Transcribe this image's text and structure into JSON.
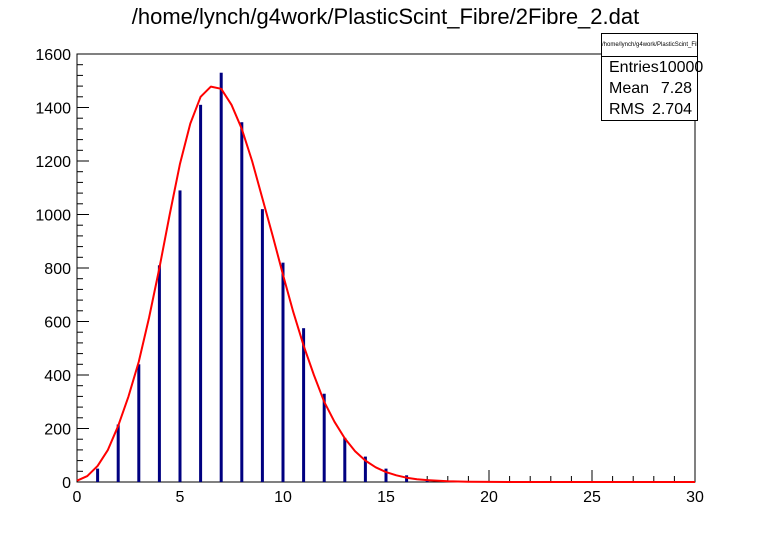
{
  "title": "/home/lynch/g4work/PlasticScint_Fibre/2Fibre_2.dat",
  "stats": {
    "header": "/home/lynch/g4work/PlasticScint_Fibre/2Fibre_2.dat",
    "rows": [
      {
        "label": "Entries",
        "value": "10000"
      },
      {
        "label": "Mean",
        "value": "7.28"
      },
      {
        "label": "RMS",
        "value": "2.704"
      }
    ]
  },
  "chart_data": {
    "type": "bar",
    "title": "/home/lynch/g4work/PlasticScint_Fibre/2Fibre_2.dat",
    "xlabel": "",
    "ylabel": "",
    "xlim": [
      0,
      30
    ],
    "ylim": [
      0,
      1600
    ],
    "xticks": [
      0,
      5,
      10,
      15,
      20,
      25,
      30
    ],
    "yticks": [
      0,
      200,
      400,
      600,
      800,
      1000,
      1200,
      1400,
      1600
    ],
    "histogram": {
      "color": "#000080",
      "x": [
        1,
        2,
        3,
        4,
        5,
        6,
        7,
        8,
        9,
        10,
        11,
        12,
        13,
        14,
        15,
        16,
        17,
        18,
        19,
        20,
        21,
        22,
        23,
        24,
        25,
        26,
        27,
        28,
        29
      ],
      "values": [
        50,
        215,
        440,
        810,
        1090,
        1410,
        1530,
        1345,
        1020,
        820,
        575,
        330,
        165,
        95,
        50,
        25,
        10,
        5,
        3,
        2,
        1,
        1,
        0,
        0,
        0,
        0,
        0,
        0,
        0
      ]
    },
    "fit": {
      "color": "#ff0000",
      "x": [
        0,
        0.5,
        1,
        1.5,
        2,
        2.5,
        3,
        3.5,
        4,
        4.5,
        5,
        5.5,
        6,
        6.5,
        7,
        7.5,
        8,
        8.5,
        9,
        9.5,
        10,
        10.5,
        11,
        11.5,
        12,
        12.5,
        13,
        13.5,
        14,
        14.5,
        15,
        15.5,
        16,
        16.5,
        17,
        18,
        19,
        20,
        22,
        25,
        30
      ],
      "values": [
        5,
        22,
        60,
        120,
        210,
        320,
        450,
        615,
        800,
        1000,
        1190,
        1340,
        1440,
        1478,
        1470,
        1410,
        1320,
        1200,
        1060,
        920,
        775,
        635,
        510,
        400,
        300,
        225,
        163,
        115,
        80,
        55,
        37,
        25,
        16,
        10,
        7,
        3,
        1,
        0.5,
        0,
        0,
        0
      ]
    },
    "grid": false,
    "legend": "none"
  }
}
